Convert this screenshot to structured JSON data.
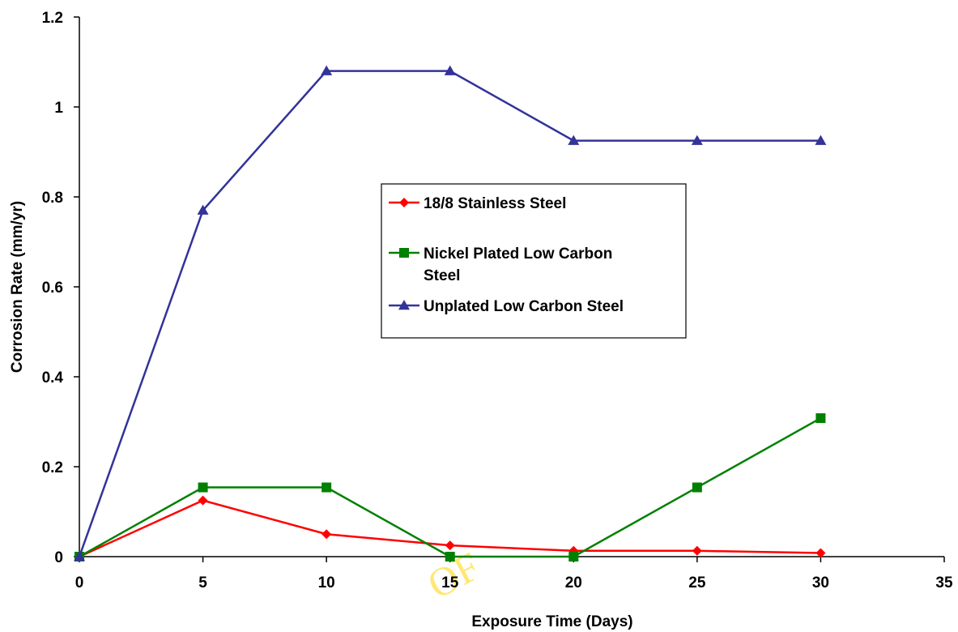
{
  "chart_data": {
    "type": "line",
    "xlabel": "Exposure Time (Days)",
    "ylabel": "Corrosion Rate (mm/yr)",
    "xlim": [
      0,
      35
    ],
    "ylim": [
      0,
      1.2
    ],
    "x_ticks": [
      0,
      5,
      10,
      15,
      20,
      25,
      30,
      35
    ],
    "y_ticks": [
      "0",
      "0.2",
      "0.4",
      "0.6",
      "0.8",
      "1",
      "1.2"
    ],
    "grid": false,
    "legend_position": "center",
    "x": [
      0,
      5,
      10,
      15,
      20,
      25,
      30
    ],
    "series": [
      {
        "name": "18/8 Stainless Steel",
        "values": [
          0,
          0.125,
          0.05,
          0.025,
          0.013,
          0.013,
          0.008
        ],
        "color": "#ff0000",
        "marker": "diamond"
      },
      {
        "name": "Nickel Plated Low Carbon Steel",
        "values": [
          0,
          0.154,
          0.154,
          0,
          0,
          0.154,
          0.308
        ],
        "color": "#008000",
        "marker": "square"
      },
      {
        "name": "Unplated Low Carbon Steel",
        "values": [
          0,
          0.77,
          1.08,
          1.08,
          0.925,
          0.925,
          0.925
        ],
        "color": "#333399",
        "marker": "triangle"
      }
    ]
  },
  "watermark": "OF"
}
